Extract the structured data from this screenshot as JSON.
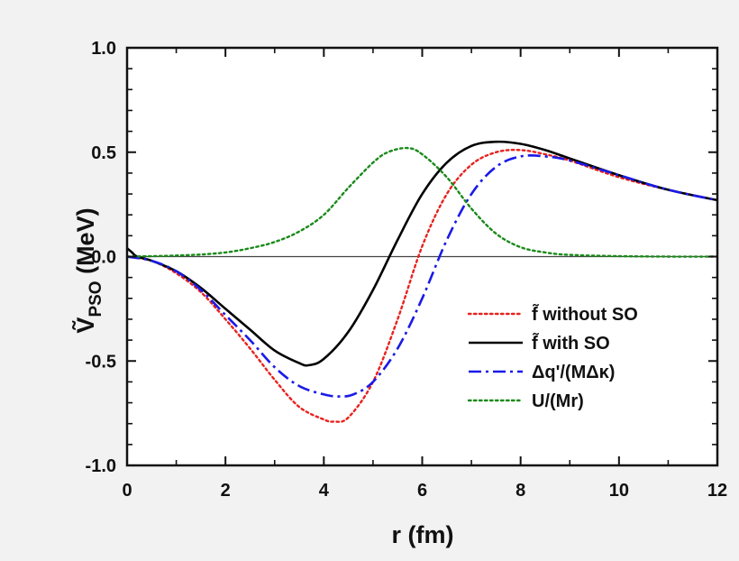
{
  "chart_data": {
    "type": "line",
    "xlabel": "r (fm)",
    "ylabel_main": "Ṽ",
    "ylabel_sub": "PSO",
    "ylabel_unit": " (MeV)",
    "xlim": [
      0,
      12
    ],
    "ylim": [
      -1.0,
      1.0
    ],
    "x_ticks": [
      0,
      2,
      4,
      6,
      8,
      10,
      12
    ],
    "x_tick_labels": [
      "0",
      "2",
      "4",
      "6",
      "8",
      "10",
      "12"
    ],
    "y_ticks": [
      -1.0,
      -0.5,
      0.0,
      0.5,
      1.0
    ],
    "y_tick_labels": [
      "-1.0",
      "-0.5",
      "0.0",
      "0.5",
      "1.0"
    ],
    "grid": false,
    "legend_position": "lower-right",
    "zero_line": true,
    "series": [
      {
        "name": "f̃ without  SO",
        "color": "#e8221e",
        "style": "dotted",
        "x": [
          0,
          0.5,
          1,
          1.5,
          2,
          2.5,
          3,
          3.5,
          4,
          4.2,
          4.5,
          5,
          5.5,
          6,
          6.5,
          7,
          7.5,
          8,
          8.5,
          9,
          10,
          11,
          12
        ],
        "y": [
          0,
          -0.02,
          -0.08,
          -0.17,
          -0.3,
          -0.44,
          -0.59,
          -0.72,
          -0.78,
          -0.79,
          -0.77,
          -0.6,
          -0.3,
          0.05,
          0.3,
          0.44,
          0.5,
          0.51,
          0.49,
          0.46,
          0.38,
          0.32,
          0.27
        ]
      },
      {
        "name": "f̃ with SO",
        "color": "#000000",
        "style": "solid",
        "x": [
          0,
          0.1,
          0.2,
          0.5,
          1,
          1.5,
          2,
          2.5,
          3,
          3.5,
          3.7,
          4,
          4.5,
          5,
          5.5,
          6,
          6.5,
          7,
          7.5,
          8,
          8.5,
          9,
          10,
          11,
          12
        ],
        "y": [
          0.04,
          0.02,
          0.0,
          -0.02,
          -0.07,
          -0.15,
          -0.25,
          -0.35,
          -0.45,
          -0.51,
          -0.52,
          -0.49,
          -0.36,
          -0.16,
          0.08,
          0.3,
          0.45,
          0.53,
          0.55,
          0.54,
          0.51,
          0.47,
          0.39,
          0.32,
          0.27
        ]
      },
      {
        "name": "Δq'/(MΔκ)",
        "color": "#1a1ae8",
        "style": "dashdot",
        "x": [
          0,
          0.5,
          1,
          1.5,
          2,
          2.5,
          3,
          3.5,
          4,
          4.3,
          4.6,
          5,
          5.5,
          6,
          6.5,
          7,
          7.5,
          8,
          8.5,
          9,
          10,
          11,
          12
        ],
        "y": [
          0,
          -0.02,
          -0.07,
          -0.16,
          -0.28,
          -0.4,
          -0.53,
          -0.62,
          -0.66,
          -0.67,
          -0.66,
          -0.6,
          -0.44,
          -0.2,
          0.08,
          0.3,
          0.43,
          0.48,
          0.48,
          0.46,
          0.39,
          0.32,
          0.27
        ]
      },
      {
        "name": "U/(Mr)",
        "color": "#1a8a1a",
        "style": "dotted",
        "x": [
          0,
          0.5,
          1,
          1.5,
          2,
          2.5,
          3,
          3.5,
          4,
          4.5,
          5,
          5.3,
          5.7,
          6,
          6.5,
          7,
          7.5,
          8,
          8.5,
          9,
          10,
          11,
          12
        ],
        "y": [
          0,
          0.002,
          0.005,
          0.01,
          0.02,
          0.04,
          0.07,
          0.12,
          0.2,
          0.33,
          0.45,
          0.5,
          0.52,
          0.49,
          0.38,
          0.23,
          0.11,
          0.045,
          0.02,
          0.008,
          0.002,
          0,
          0
        ]
      }
    ]
  }
}
